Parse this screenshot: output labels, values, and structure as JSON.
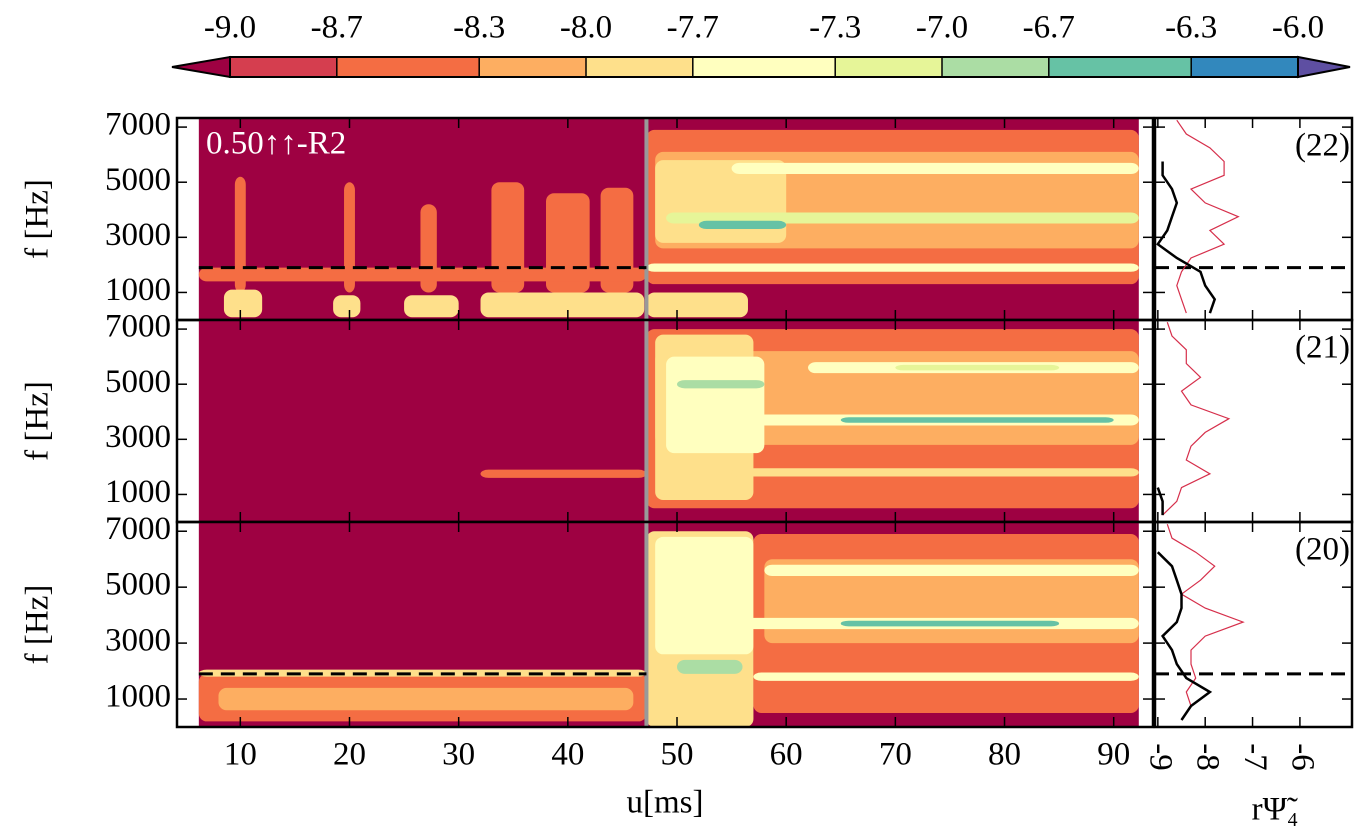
{
  "chart_data": {
    "type": "spectrogram",
    "xlabel": "u[ms]",
    "ylabel": "f [Hz]",
    "xlim": [
      4.2,
      93.6
    ],
    "xticks": [
      10,
      20,
      30,
      40,
      50,
      60,
      70,
      80,
      90
    ],
    "ylim": [
      0,
      7330
    ],
    "yticks": [
      1000,
      3000,
      5000,
      7000
    ],
    "data_range": [
      6.2,
      92.3
    ],
    "merger_time": 47.2,
    "annotation": "0.50↑↑-R2",
    "colorbar": {
      "ticks": [
        {
          "value": -9,
          "label": "-9.0"
        },
        {
          "value": -8.7,
          "label": "-8.7"
        },
        {
          "value": -8.3,
          "label": "-8.3"
        },
        {
          "value": -8,
          "label": "-8.0"
        },
        {
          "value": -7.7,
          "label": "-7.7"
        },
        {
          "value": -7.3,
          "label": "-7.3"
        },
        {
          "value": -7,
          "label": "-7.0"
        },
        {
          "value": -6.7,
          "label": "-6.7"
        },
        {
          "value": -6.3,
          "label": "-6.3"
        },
        {
          "value": -6,
          "label": "-6.0"
        }
      ],
      "colors": [
        "#9e0142",
        "#d53e4f",
        "#f46d43",
        "#fdae61",
        "#fee08b",
        "#ffffbf",
        "#e6f598",
        "#abdda4",
        "#66c2a5",
        "#3288bd",
        "#5e4fa2"
      ]
    },
    "side": {
      "xlabel": "rΨ̃₄",
      "xlim": [
        -9.06,
        -4.9
      ],
      "xticks": [
        -9,
        -8,
        -7,
        -6
      ],
      "f": [
        250,
        750,
        1250,
        1750,
        2250,
        2750,
        3250,
        3750,
        4250,
        4750,
        5250,
        5750,
        6250,
        6750,
        7250
      ]
    },
    "panels": [
      {
        "label": "(22)",
        "dashed_f": 1900,
        "bands": [
          {
            "t": [
              47.2,
              92.3
            ],
            "f": [
              1300,
              6900
            ],
            "level": -8.7
          },
          {
            "t": [
              48,
              92.3
            ],
            "f": [
              2600,
              6100
            ],
            "level": -8.3
          },
          {
            "t": [
              48,
              60
            ],
            "f": [
              2800,
              5800
            ],
            "level": -8
          },
          {
            "t": [
              55,
              92.3
            ],
            "f": [
              5300,
              5700
            ],
            "level": -7.7
          },
          {
            "t": [
              49,
              92.3
            ],
            "f": [
              3500,
              3900
            ],
            "level": -7.3
          },
          {
            "t": [
              52,
              60
            ],
            "f": [
              3300,
              3600
            ],
            "level": -6.7
          },
          {
            "t": [
              47.2,
              92.3
            ],
            "f": [
              1750,
              2050
            ],
            "level": -7.7
          },
          {
            "t": [
              9.5,
              10.5
            ],
            "f": [
              1000,
              5200
            ],
            "level": -8.7
          },
          {
            "t": [
              19.5,
              20.5
            ],
            "f": [
              1000,
              5000
            ],
            "level": -8.7
          },
          {
            "t": [
              26.5,
              28
            ],
            "f": [
              1000,
              4200
            ],
            "level": -8.7
          },
          {
            "t": [
              33,
              36
            ],
            "f": [
              1000,
              5000
            ],
            "level": -8.7
          },
          {
            "t": [
              38,
              42
            ],
            "f": [
              1000,
              4600
            ],
            "level": -8.7
          },
          {
            "t": [
              43,
              46
            ],
            "f": [
              1000,
              4800
            ],
            "level": -8.7
          },
          {
            "t": [
              6.2,
              47.2
            ],
            "f": [
              1400,
              1900
            ],
            "level": -8.7
          },
          {
            "t": [
              8.5,
              12
            ],
            "f": [
              100,
              1100
            ],
            "level": -8
          },
          {
            "t": [
              18.5,
              21
            ],
            "f": [
              100,
              900
            ],
            "level": -8
          },
          {
            "t": [
              25,
              30
            ],
            "f": [
              100,
              900
            ],
            "level": -8
          },
          {
            "t": [
              32,
              47
            ],
            "f": [
              100,
              1000
            ],
            "level": -8
          },
          {
            "t": [
              47.2,
              56.5
            ],
            "f": [
              100,
              1000
            ],
            "level": -8
          }
        ],
        "series": [
          {
            "color": "#d62f4b",
            "values": [
              -8.4,
              -8.5,
              -8.6,
              -8.5,
              -8.3,
              -7.6,
              -7.9,
              -7.3,
              -8.0,
              -8.3,
              -7.6,
              -7.6,
              -7.9,
              -8.4,
              -8.6
            ]
          },
          {
            "color": "#000000",
            "values": [
              -7.9,
              -7.8,
              -8.0,
              -8.1,
              -8.6,
              -9.0,
              -8.8,
              -8.7,
              -8.6,
              -8.7,
              -8.9,
              -8.9,
              null,
              null,
              null
            ]
          }
        ]
      },
      {
        "label": "(21)",
        "bands": [
          {
            "t": [
              47.2,
              92.3
            ],
            "f": [
              500,
              7000
            ],
            "level": -8.7
          },
          {
            "t": [
              48,
              92.3
            ],
            "f": [
              2800,
              6200
            ],
            "level": -8.3
          },
          {
            "t": [
              48,
              57
            ],
            "f": [
              800,
              6800
            ],
            "level": -8
          },
          {
            "t": [
              49,
              58
            ],
            "f": [
              2500,
              6000
            ],
            "level": -7.7
          },
          {
            "t": [
              50,
              58
            ],
            "f": [
              4850,
              5150
            ],
            "level": -7
          },
          {
            "t": [
              62,
              92.3
            ],
            "f": [
              5400,
              5800
            ],
            "level": -7.7
          },
          {
            "t": [
              70,
              85
            ],
            "f": [
              5500,
              5700
            ],
            "level": -7.3
          },
          {
            "t": [
              50,
              92.3
            ],
            "f": [
              3500,
              3900
            ],
            "level": -7.7
          },
          {
            "t": [
              65,
              90
            ],
            "f": [
              3600,
              3800
            ],
            "level": -6.7
          },
          {
            "t": [
              55,
              92.3
            ],
            "f": [
              1650,
              1950
            ],
            "level": -8
          },
          {
            "t": [
              32,
              47.2
            ],
            "f": [
              1600,
              1900
            ],
            "level": -8.7
          }
        ],
        "series": [
          {
            "color": "#d62f4b",
            "values": [
              -8.9,
              -8.6,
              -8.5,
              -7.9,
              -8.4,
              -8.3,
              -8.0,
              -7.5,
              -8.3,
              -8.5,
              -8.1,
              -8.4,
              -8.4,
              -8.7,
              -8.8
            ]
          },
          {
            "color": "#000000",
            "values": [
              -8.9,
              -8.9,
              -9.0,
              null,
              null,
              null,
              null,
              null,
              null,
              null,
              null,
              null,
              null,
              null,
              null
            ]
          }
        ]
      },
      {
        "label": "(20)",
        "dashed_f": 1900,
        "bands": [
          {
            "t": [
              6.2,
              47.2
            ],
            "f": [
              200,
              1900
            ],
            "level": -8.7
          },
          {
            "t": [
              8,
              46
            ],
            "f": [
              600,
              1400
            ],
            "level": -8.3
          },
          {
            "t": [
              6.2,
              47.2
            ],
            "f": [
              1800,
              2050
            ],
            "level": -8
          },
          {
            "t": [
              47.2,
              57
            ],
            "f": [
              0,
              7000
            ],
            "level": -8
          },
          {
            "t": [
              48,
              57
            ],
            "f": [
              2600,
              6800
            ],
            "level": -7.7
          },
          {
            "t": [
              57,
              92.3
            ],
            "f": [
              500,
              6900
            ],
            "level": -8.7
          },
          {
            "t": [
              58,
              92.3
            ],
            "f": [
              3000,
              6000
            ],
            "level": -8.3
          },
          {
            "t": [
              58,
              92.3
            ],
            "f": [
              5400,
              5800
            ],
            "level": -7.7
          },
          {
            "t": [
              50,
              92.3
            ],
            "f": [
              3500,
              3900
            ],
            "level": -7.7
          },
          {
            "t": [
              65,
              85
            ],
            "f": [
              3600,
              3800
            ],
            "level": -6.7
          },
          {
            "t": [
              50,
              56
            ],
            "f": [
              1900,
              2400
            ],
            "level": -7
          },
          {
            "t": [
              57,
              92.3
            ],
            "f": [
              1650,
              1950
            ],
            "level": -7.7
          }
        ],
        "series": [
          {
            "color": "#d62f4b",
            "values": [
              -8.5,
              -8.3,
              -8.4,
              -8.2,
              -8.3,
              -8.3,
              -8.0,
              -7.2,
              -8.0,
              -8.5,
              -8.1,
              -7.8,
              -8.2,
              -8.7,
              -8.8
            ]
          },
          {
            "color": "#000000",
            "values": [
              -8.5,
              -8.3,
              -7.9,
              -8.4,
              -8.6,
              -8.7,
              -8.9,
              -8.6,
              -8.5,
              -8.5,
              -8.6,
              -8.7,
              -9.0,
              null,
              null
            ]
          }
        ]
      }
    ]
  }
}
